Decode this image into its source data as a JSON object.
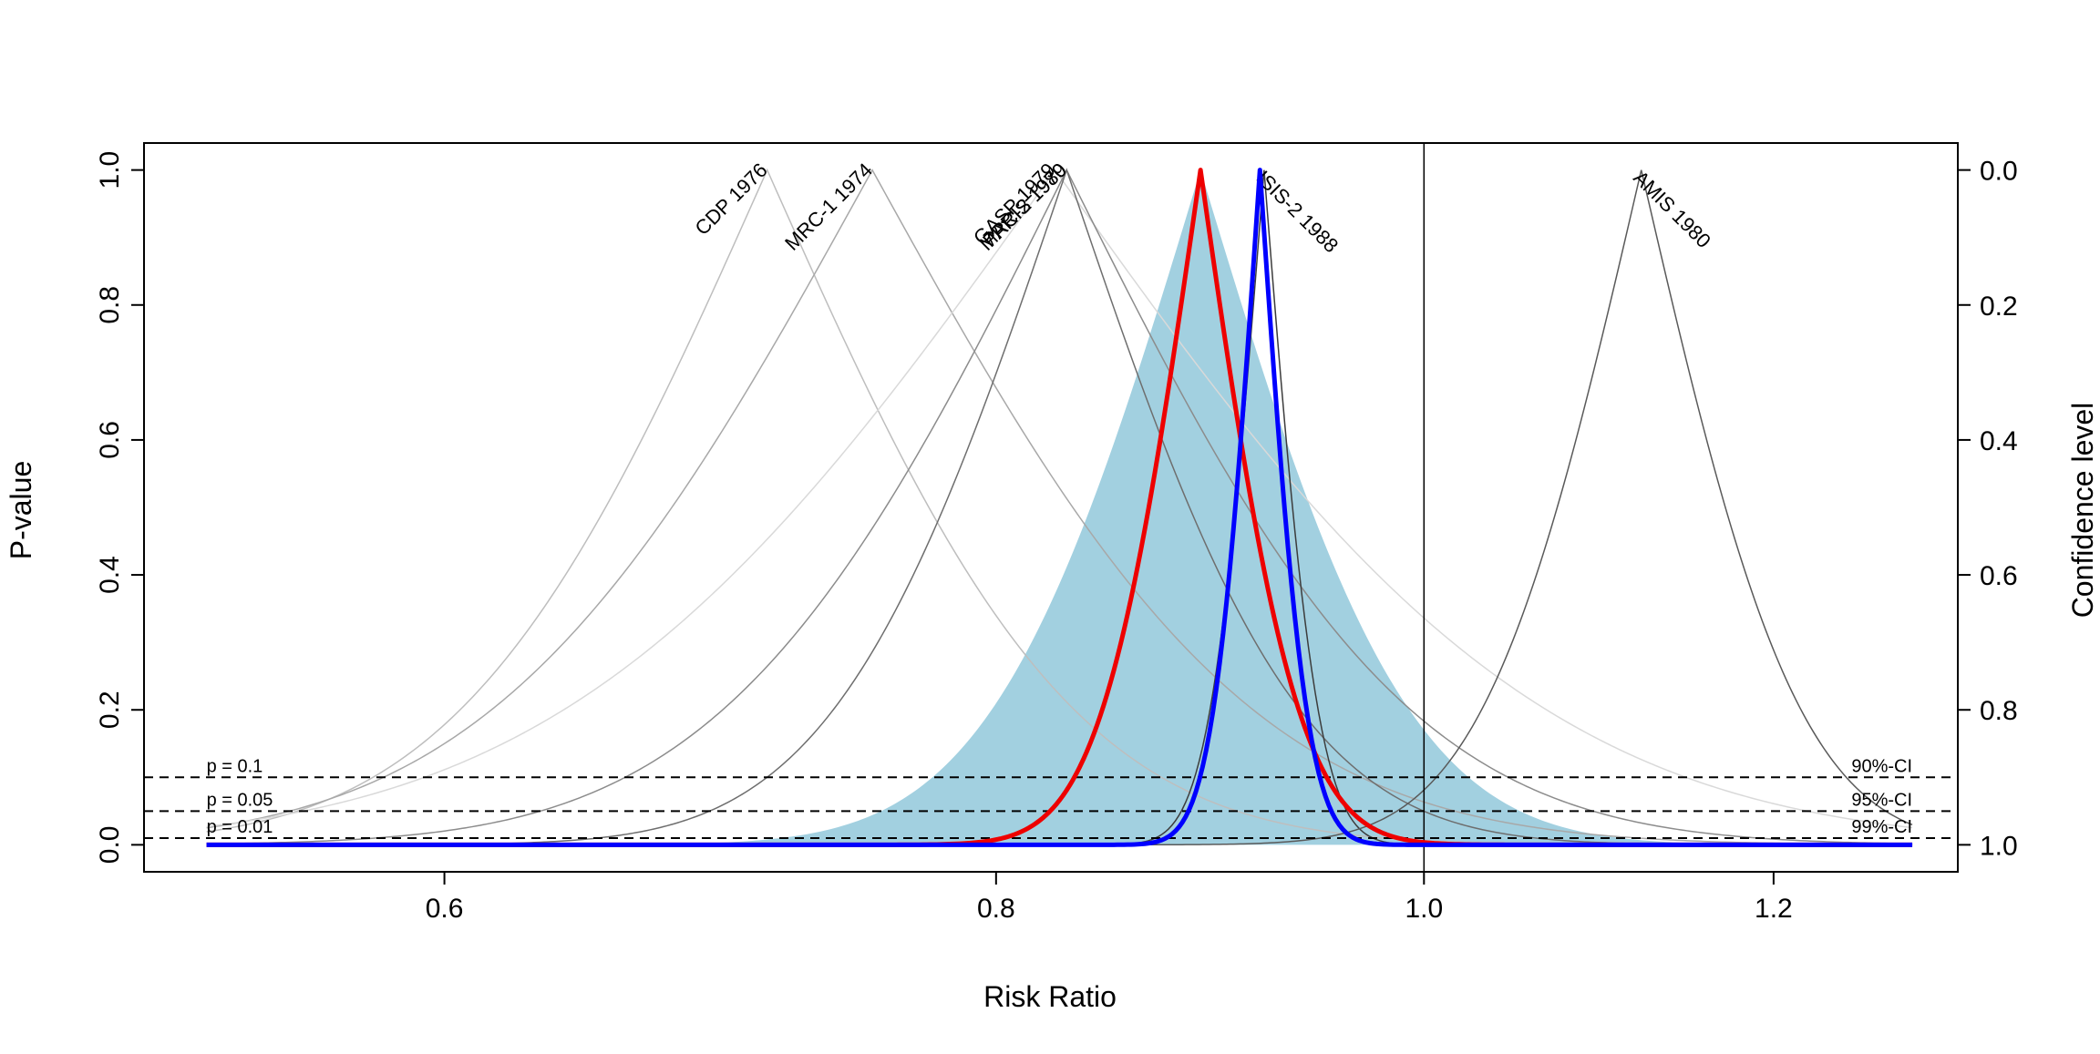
{
  "chart_data": {
    "type": "line",
    "title": "",
    "xlabel": "Risk Ratio",
    "ylabel": "P-value",
    "y2label": "Confidence level",
    "x_scale": "log",
    "xlim": [
      0.513,
      1.321
    ],
    "ylim": [
      -0.04,
      1.04
    ],
    "x_ticks": [
      0.6,
      0.8,
      1.0,
      1.2
    ],
    "x_tick_labels": [
      "0.6",
      "0.8",
      "1.0",
      "1.2"
    ],
    "y_ticks": [
      0.0,
      0.2,
      0.4,
      0.6,
      0.8,
      1.0
    ],
    "y_tick_labels": [
      "0.0",
      "0.2",
      "0.4",
      "0.6",
      "0.8",
      "1.0"
    ],
    "y2_tick_labels": [
      "1.0",
      "0.8",
      "0.6",
      "0.4",
      "0.2",
      "0.0"
    ],
    "x_range_curves": [
      0.53,
      1.29
    ],
    "null_line_x": 1.0,
    "grid": false,
    "reference_lines": [
      {
        "p": 0.1,
        "left_label": "p = 0.1",
        "right_label": "90%-CI"
      },
      {
        "p": 0.05,
        "left_label": "p = 0.05",
        "right_label": "95%-CI"
      },
      {
        "p": 0.01,
        "left_label": "p = 0.01",
        "right_label": "99%-CI"
      }
    ],
    "series": [
      {
        "name": "CDP 1976",
        "point_estimate": 0.71,
        "se": 0.125,
        "color": "#bebebe",
        "width": 1.5,
        "label_anchor": "end"
      },
      {
        "name": "MRC-1 1974",
        "point_estimate": 0.75,
        "se": 0.155,
        "color": "#a8a8a8",
        "width": 1.5,
        "label_anchor": "end"
      },
      {
        "name": "GASP 1979",
        "point_estimate": 0.825,
        "se": 0.2,
        "color": "#d9d9d9",
        "width": 1.5,
        "label_anchor": "end"
      },
      {
        "name": "PARIS 1980",
        "point_estimate": 0.83,
        "se": 0.14,
        "color": "#8c8c8c",
        "width": 1.5,
        "label_anchor": "end"
      },
      {
        "name": "MRC-2 1979",
        "point_estimate": 0.83,
        "se": 0.095,
        "color": "#6e6e6e",
        "width": 1.5,
        "label_anchor": "end"
      },
      {
        "name": "ISIS-2 1988",
        "point_estimate": 0.92,
        "se": 0.022,
        "color": "#3c3c3c",
        "width": 1.5,
        "label_anchor": "start"
      },
      {
        "name": "AMIS 1980",
        "point_estimate": 1.12,
        "se": 0.065,
        "color": "#5a5a5a",
        "width": 1.5,
        "label_anchor": "start"
      }
    ],
    "random_effects_band": {
      "point_estimate": 0.89,
      "se": 0.085,
      "color": "#a2d0e0"
    },
    "fixed_effect_curve": {
      "point_estimate": 0.918,
      "se": 0.019,
      "color": "#0000ff",
      "width": 5
    },
    "random_effects_curve": {
      "point_estimate": 0.89,
      "se": 0.04,
      "color": "#ee0000",
      "width": 5
    },
    "legend": "none"
  }
}
